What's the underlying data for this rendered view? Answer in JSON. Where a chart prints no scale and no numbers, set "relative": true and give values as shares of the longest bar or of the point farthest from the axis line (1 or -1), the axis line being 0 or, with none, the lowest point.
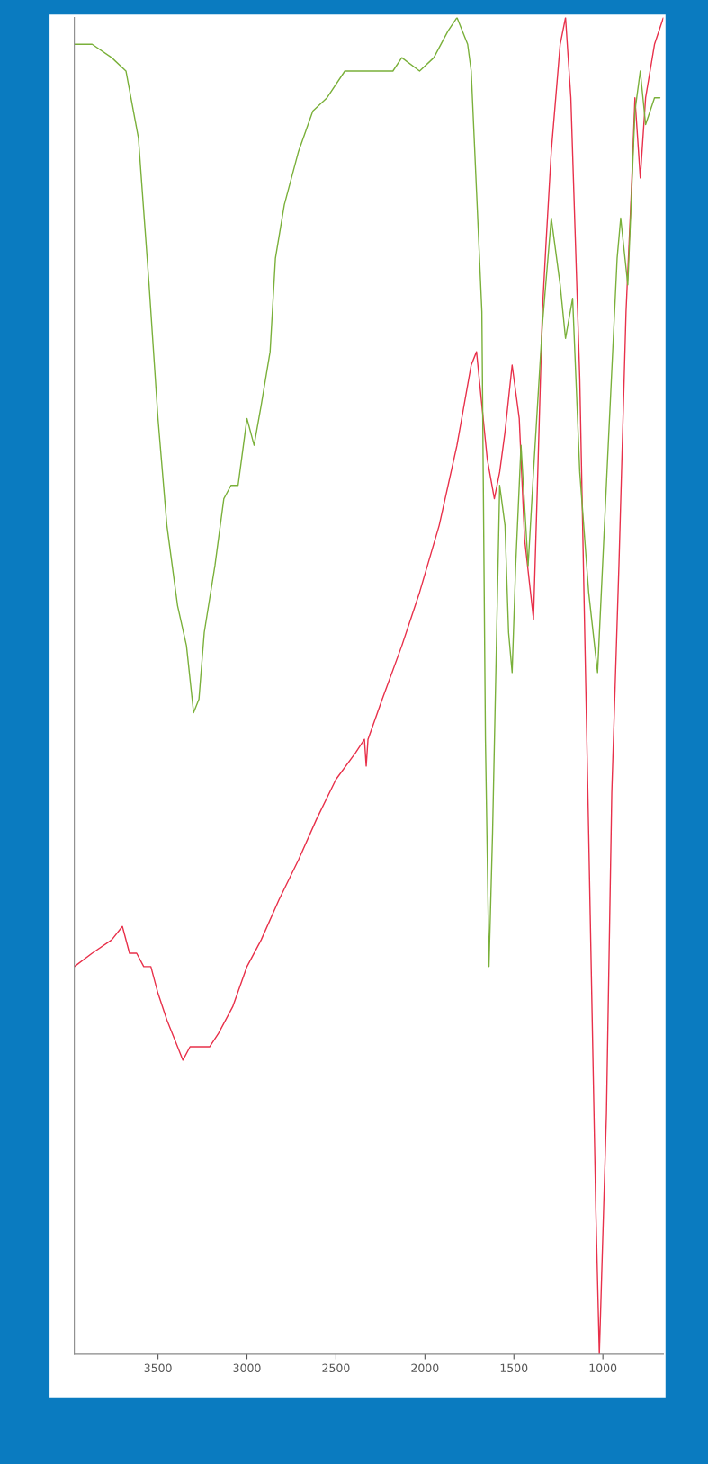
{
  "chart_data": {
    "type": "line",
    "relative": true,
    "xlim": [
      3970,
      660
    ],
    "xticks": [
      3500,
      3000,
      2500,
      2000,
      1500,
      1000
    ],
    "series": [
      {
        "color": "#e8304a",
        "x": [
          3970,
          3870,
          3760,
          3700,
          3660,
          3620,
          3580,
          3540,
          3500,
          3450,
          3390,
          3360,
          3320,
          3260,
          3210,
          3160,
          3080,
          3000,
          2920,
          2820,
          2710,
          2610,
          2500,
          2390,
          2340,
          2330,
          2320,
          2240,
          2130,
          2030,
          1920,
          1820,
          1740,
          1710,
          1680,
          1650,
          1610,
          1580,
          1550,
          1510,
          1470,
          1440,
          1390,
          1370,
          1340,
          1320,
          1290,
          1240,
          1210,
          1180,
          1130,
          1080,
          1040,
          1020,
          980,
          950,
          910,
          870,
          840,
          820,
          790,
          760,
          710,
          660
        ],
        "values": [
          0.29,
          0.3,
          0.31,
          0.32,
          0.3,
          0.3,
          0.29,
          0.29,
          0.27,
          0.25,
          0.23,
          0.22,
          0.23,
          0.23,
          0.23,
          0.24,
          0.26,
          0.29,
          0.31,
          0.34,
          0.37,
          0.4,
          0.43,
          0.45,
          0.46,
          0.44,
          0.46,
          0.49,
          0.53,
          0.57,
          0.62,
          0.68,
          0.74,
          0.75,
          0.71,
          0.67,
          0.64,
          0.66,
          0.69,
          0.74,
          0.7,
          0.61,
          0.55,
          0.64,
          0.78,
          0.83,
          0.9,
          0.98,
          1.0,
          0.94,
          0.73,
          0.39,
          0.11,
          0.0,
          0.18,
          0.42,
          0.59,
          0.78,
          0.87,
          0.94,
          0.88,
          0.94,
          0.98,
          1.0
        ]
      },
      {
        "color": "#7ab03a",
        "x": [
          3970,
          3870,
          3760,
          3680,
          3610,
          3550,
          3500,
          3450,
          3390,
          3340,
          3300,
          3270,
          3240,
          3180,
          3130,
          3090,
          3050,
          3000,
          2960,
          2920,
          2870,
          2840,
          2790,
          2710,
          2630,
          2550,
          2450,
          2340,
          2240,
          2180,
          2130,
          2030,
          1950,
          1870,
          1820,
          1760,
          1740,
          1710,
          1680,
          1660,
          1640,
          1620,
          1580,
          1550,
          1530,
          1510,
          1490,
          1460,
          1420,
          1390,
          1340,
          1290,
          1240,
          1210,
          1170,
          1130,
          1080,
          1030,
          970,
          920,
          900,
          860,
          820,
          790,
          760,
          710,
          680
        ],
        "values": [
          0.98,
          0.98,
          0.97,
          0.96,
          0.91,
          0.8,
          0.7,
          0.62,
          0.56,
          0.53,
          0.48,
          0.49,
          0.54,
          0.59,
          0.64,
          0.65,
          0.65,
          0.7,
          0.68,
          0.71,
          0.75,
          0.82,
          0.86,
          0.9,
          0.93,
          0.94,
          0.96,
          0.96,
          0.96,
          0.96,
          0.97,
          0.96,
          0.97,
          0.99,
          1.0,
          0.98,
          0.96,
          0.87,
          0.78,
          0.46,
          0.29,
          0.39,
          0.65,
          0.62,
          0.54,
          0.51,
          0.59,
          0.68,
          0.59,
          0.66,
          0.77,
          0.85,
          0.8,
          0.76,
          0.79,
          0.66,
          0.57,
          0.51,
          0.68,
          0.82,
          0.85,
          0.8,
          0.93,
          0.96,
          0.92,
          0.94,
          0.94
        ]
      }
    ]
  }
}
